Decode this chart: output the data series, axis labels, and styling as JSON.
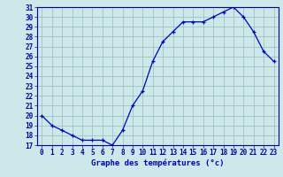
{
  "hours": [
    0,
    1,
    2,
    3,
    4,
    5,
    6,
    7,
    8,
    9,
    10,
    11,
    12,
    13,
    14,
    15,
    16,
    17,
    18,
    19,
    20,
    21,
    22,
    23
  ],
  "temps": [
    20.0,
    19.0,
    18.5,
    18.0,
    17.5,
    17.5,
    17.5,
    17.0,
    18.5,
    21.0,
    22.5,
    25.5,
    27.5,
    28.5,
    29.5,
    29.5,
    29.5,
    30.0,
    30.5,
    31.0,
    30.0,
    28.5,
    26.5,
    25.5
  ],
  "xlabel": "Graphe des températures (°c)",
  "ylim": [
    17,
    31
  ],
  "xlim_min": -0.5,
  "xlim_max": 23.5,
  "yticks": [
    17,
    18,
    19,
    20,
    21,
    22,
    23,
    24,
    25,
    26,
    27,
    28,
    29,
    30,
    31
  ],
  "xticks": [
    0,
    1,
    2,
    3,
    4,
    5,
    6,
    7,
    8,
    9,
    10,
    11,
    12,
    13,
    14,
    15,
    16,
    17,
    18,
    19,
    20,
    21,
    22,
    23
  ],
  "line_color": "#0000cc",
  "marker": "+",
  "bg_color": "#cce8e8",
  "grid_color": "#99bbbb",
  "axis_color": "#0000aa",
  "label_color": "#0000cc",
  "tick_fontsize": 5.5,
  "xlabel_fontsize": 6.5
}
